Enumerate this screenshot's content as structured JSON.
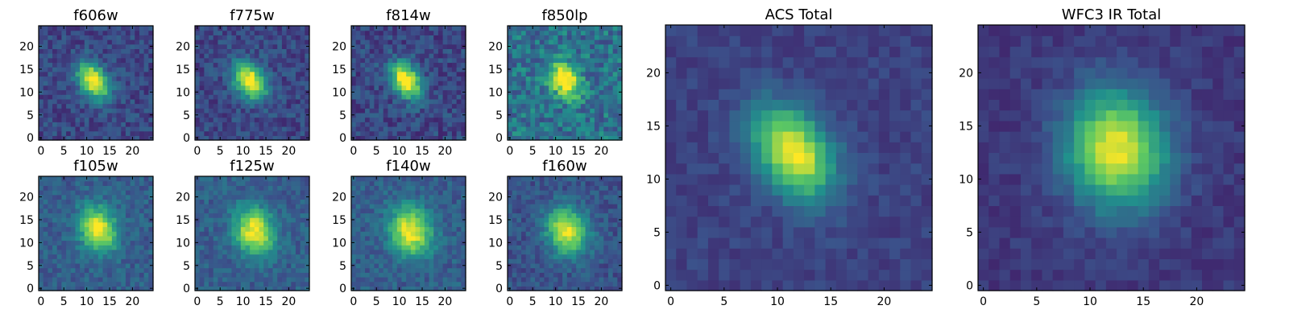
{
  "figure": {
    "background": "#ffffff",
    "colormap": "viridis",
    "colormap_stops": [
      "#440154",
      "#3b528b",
      "#21918c",
      "#5ec962",
      "#fde725"
    ]
  },
  "chart_data": [
    {
      "type": "heatmap",
      "title": "f606w",
      "grid_size": 25,
      "xlim": [
        0,
        25
      ],
      "ylim": [
        0,
        25
      ],
      "xticks": [
        0,
        5,
        10,
        15,
        20
      ],
      "yticks": [
        0,
        5,
        10,
        15,
        20
      ],
      "source": {
        "peak": 0.85,
        "cx": 11.5,
        "cy": 12.5,
        "sigma_x": 2.0,
        "sigma_y": 3.0,
        "angle_deg": 35
      },
      "background_level": 0.22,
      "noise": 0.1
    },
    {
      "type": "heatmap",
      "title": "f775w",
      "grid_size": 25,
      "xlim": [
        0,
        25
      ],
      "ylim": [
        0,
        25
      ],
      "xticks": [
        0,
        5,
        10,
        15,
        20
      ],
      "yticks": [
        0,
        5,
        10,
        15,
        20
      ],
      "source": {
        "peak": 0.85,
        "cx": 11.5,
        "cy": 12.5,
        "sigma_x": 2.1,
        "sigma_y": 3.0,
        "angle_deg": 35
      },
      "background_level": 0.22,
      "noise": 0.1
    },
    {
      "type": "heatmap",
      "title": "f814w",
      "grid_size": 25,
      "xlim": [
        0,
        25
      ],
      "ylim": [
        0,
        25
      ],
      "xticks": [
        0,
        5,
        10,
        15,
        20
      ],
      "yticks": [
        0,
        5,
        10,
        15,
        20
      ],
      "source": {
        "peak": 0.85,
        "cx": 11.5,
        "cy": 12.5,
        "sigma_x": 2.0,
        "sigma_y": 3.0,
        "angle_deg": 35
      },
      "background_level": 0.22,
      "noise": 0.11
    },
    {
      "type": "heatmap",
      "title": "f850lp",
      "grid_size": 25,
      "xlim": [
        0,
        25
      ],
      "ylim": [
        0,
        25
      ],
      "xticks": [
        0,
        5,
        10,
        15,
        20
      ],
      "yticks": [
        0,
        5,
        10,
        15,
        20
      ],
      "source": {
        "peak": 0.75,
        "cx": 12.0,
        "cy": 12.5,
        "sigma_x": 2.0,
        "sigma_y": 2.8,
        "angle_deg": 35
      },
      "background_level": 0.38,
      "noise": 0.16
    },
    {
      "type": "heatmap",
      "title": "f105w",
      "grid_size": 25,
      "xlim": [
        0,
        25
      ],
      "ylim": [
        0,
        25
      ],
      "xticks": [
        0,
        5,
        10,
        15,
        20
      ],
      "yticks": [
        0,
        5,
        10,
        15,
        20
      ],
      "source": {
        "peak": 0.75,
        "cx": 12.5,
        "cy": 13.0,
        "sigma_x": 2.6,
        "sigma_y": 3.4,
        "angle_deg": 20
      },
      "background_level": 0.3,
      "noise": 0.09
    },
    {
      "type": "heatmap",
      "title": "f125w",
      "grid_size": 25,
      "xlim": [
        0,
        25
      ],
      "ylim": [
        0,
        25
      ],
      "xticks": [
        0,
        5,
        10,
        15,
        20
      ],
      "yticks": [
        0,
        5,
        10,
        15,
        20
      ],
      "source": {
        "peak": 0.72,
        "cx": 12.5,
        "cy": 12.5,
        "sigma_x": 2.8,
        "sigma_y": 3.6,
        "angle_deg": 20
      },
      "background_level": 0.3,
      "noise": 0.09
    },
    {
      "type": "heatmap",
      "title": "f140w",
      "grid_size": 25,
      "xlim": [
        0,
        25
      ],
      "ylim": [
        0,
        25
      ],
      "xticks": [
        0,
        5,
        10,
        15,
        20
      ],
      "yticks": [
        0,
        5,
        10,
        15,
        20
      ],
      "source": {
        "peak": 0.72,
        "cx": 12.5,
        "cy": 12.5,
        "sigma_x": 3.0,
        "sigma_y": 3.6,
        "angle_deg": 20
      },
      "background_level": 0.3,
      "noise": 0.09
    },
    {
      "type": "heatmap",
      "title": "f160w",
      "grid_size": 25,
      "xlim": [
        0,
        25
      ],
      "ylim": [
        0,
        25
      ],
      "xticks": [
        0,
        5,
        10,
        15,
        20
      ],
      "yticks": [
        0,
        5,
        10,
        15,
        20
      ],
      "source": {
        "peak": 0.72,
        "cx": 12.5,
        "cy": 12.5,
        "sigma_x": 3.0,
        "sigma_y": 3.6,
        "angle_deg": 20
      },
      "background_level": 0.26,
      "noise": 0.09
    },
    {
      "type": "heatmap",
      "title": "ACS Total",
      "grid_size": 25,
      "xlim": [
        0,
        25
      ],
      "ylim": [
        0,
        25
      ],
      "xticks": [
        0,
        5,
        10,
        15,
        20
      ],
      "yticks": [
        0,
        5,
        10,
        15,
        20
      ],
      "source": {
        "peak": 0.82,
        "cx": 11.5,
        "cy": 12.5,
        "sigma_x": 2.2,
        "sigma_y": 3.2,
        "angle_deg": 35
      },
      "background_level": 0.2,
      "noise": 0.05
    },
    {
      "type": "heatmap",
      "title": "WFC3 IR Total",
      "grid_size": 25,
      "xlim": [
        0,
        25
      ],
      "ylim": [
        0,
        25
      ],
      "xticks": [
        0,
        5,
        10,
        15,
        20
      ],
      "yticks": [
        0,
        5,
        10,
        15,
        20
      ],
      "source": {
        "peak": 0.8,
        "cx": 12.5,
        "cy": 12.8,
        "sigma_x": 3.2,
        "sigma_y": 3.8,
        "angle_deg": 10
      },
      "background_level": 0.17,
      "noise": 0.05
    }
  ]
}
